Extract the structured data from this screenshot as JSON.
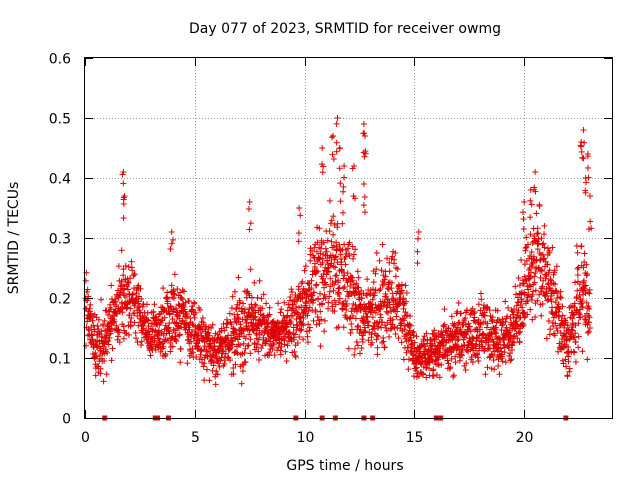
{
  "chart_data": {
    "type": "scatter",
    "title": "Day 077 of 2023, SRMTID for receiver owmg",
    "xlabel": "GPS time / hours",
    "ylabel": "SRMTID / TECUs",
    "xlim": [
      0,
      24
    ],
    "ylim": [
      0,
      0.6
    ],
    "x_ticks": [
      0,
      5,
      10,
      15,
      20
    ],
    "y_ticks": [
      0,
      0.1,
      0.2,
      0.3,
      0.4,
      0.5,
      0.6
    ],
    "x_tick_labels": [
      "0",
      "5",
      "10",
      "15",
      "20"
    ],
    "y_tick_labels": [
      "0",
      "0.1",
      "0.2",
      "0.3",
      "0.4",
      "0.5",
      "0.6"
    ],
    "grid": true,
    "marker": "+",
    "series_color": "#e00000",
    "envelope": {
      "x": [
        0,
        0.5,
        1.0,
        1.5,
        2.0,
        2.5,
        3.0,
        3.5,
        4.0,
        4.5,
        5.0,
        5.5,
        6.0,
        6.5,
        7.0,
        7.5,
        8.0,
        8.5,
        9.0,
        9.5,
        10.0,
        10.5,
        11.0,
        11.5,
        12.0,
        12.5,
        13.0,
        13.5,
        14.0,
        14.5,
        15.0,
        15.5,
        16.0,
        16.5,
        17.0,
        17.5,
        18.0,
        18.5,
        19.0,
        19.5,
        20.0,
        20.5,
        21.0,
        21.5,
        22.0,
        22.5,
        23.0
      ],
      "mean": [
        0.19,
        0.12,
        0.13,
        0.19,
        0.21,
        0.17,
        0.14,
        0.15,
        0.18,
        0.16,
        0.14,
        0.12,
        0.11,
        0.13,
        0.15,
        0.17,
        0.16,
        0.14,
        0.14,
        0.16,
        0.19,
        0.23,
        0.24,
        0.26,
        0.22,
        0.18,
        0.18,
        0.19,
        0.2,
        0.17,
        0.1,
        0.1,
        0.11,
        0.12,
        0.13,
        0.14,
        0.15,
        0.13,
        0.13,
        0.15,
        0.2,
        0.27,
        0.24,
        0.18,
        0.12,
        0.21,
        0.19
      ],
      "spread": [
        0.05,
        0.04,
        0.05,
        0.06,
        0.06,
        0.04,
        0.03,
        0.05,
        0.06,
        0.05,
        0.05,
        0.04,
        0.04,
        0.05,
        0.06,
        0.06,
        0.05,
        0.04,
        0.04,
        0.05,
        0.06,
        0.08,
        0.09,
        0.1,
        0.08,
        0.06,
        0.07,
        0.07,
        0.07,
        0.06,
        0.04,
        0.03,
        0.04,
        0.04,
        0.04,
        0.05,
        0.05,
        0.05,
        0.04,
        0.05,
        0.07,
        0.08,
        0.08,
        0.06,
        0.04,
        0.08,
        0.07
      ]
    },
    "peaks": [
      {
        "x": 1.75,
        "y": 0.41
      },
      {
        "x": 1.8,
        "y": 0.37
      },
      {
        "x": 3.95,
        "y": 0.31
      },
      {
        "x": 7.5,
        "y": 0.36
      },
      {
        "x": 9.75,
        "y": 0.35
      },
      {
        "x": 10.8,
        "y": 0.45
      },
      {
        "x": 11.3,
        "y": 0.47
      },
      {
        "x": 11.5,
        "y": 0.5
      },
      {
        "x": 11.6,
        "y": 0.45
      },
      {
        "x": 11.8,
        "y": 0.42
      },
      {
        "x": 12.25,
        "y": 0.42
      },
      {
        "x": 12.7,
        "y": 0.49
      },
      {
        "x": 12.75,
        "y": 0.47
      },
      {
        "x": 12.7,
        "y": 0.39
      },
      {
        "x": 15.2,
        "y": 0.31
      },
      {
        "x": 20.5,
        "y": 0.41
      },
      {
        "x": 20.3,
        "y": 0.38
      },
      {
        "x": 20.0,
        "y": 0.36
      },
      {
        "x": 22.7,
        "y": 0.48
      },
      {
        "x": 22.6,
        "y": 0.46
      },
      {
        "x": 22.9,
        "y": 0.44
      },
      {
        "x": 22.8,
        "y": 0.4
      },
      {
        "x": 23.0,
        "y": 0.37
      }
    ],
    "zero_values_x": [
      0.9,
      3.2,
      3.3,
      3.8,
      9.6,
      10.8,
      11.4,
      12.7,
      13.1,
      16.0,
      16.1,
      16.2,
      21.9
    ]
  }
}
